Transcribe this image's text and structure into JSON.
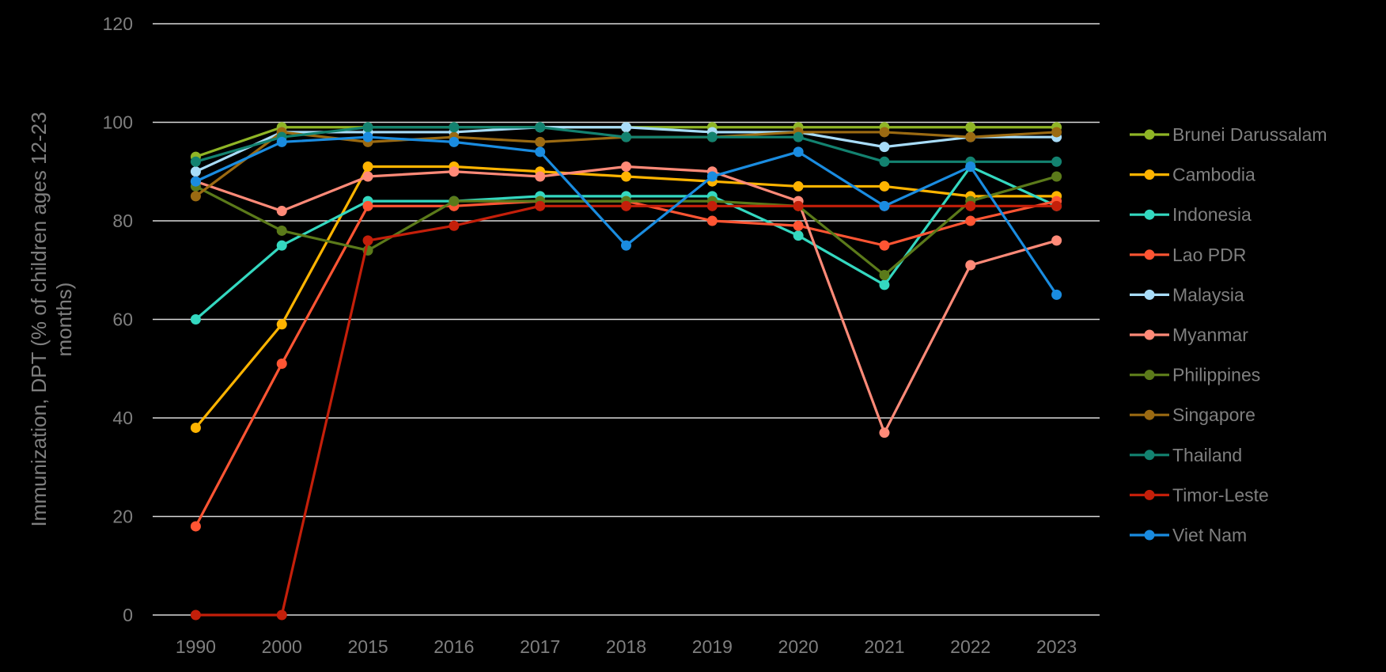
{
  "chart_data": {
    "type": "line",
    "title": "",
    "xlabel": "",
    "ylabel": "Immunization, DPT (% of children ages 12-23 months)",
    "ylim": [
      0,
      120
    ],
    "yticks": [
      0,
      20,
      40,
      60,
      80,
      100,
      120
    ],
    "grid": true,
    "legend_position": "right",
    "categories": [
      "1990",
      "2000",
      "2015",
      "2016",
      "2017",
      "2018",
      "2019",
      "2020",
      "2021",
      "2022",
      "2023"
    ],
    "series": [
      {
        "name": "Brunei Darussalam",
        "color": "#8fb526",
        "values": [
          93,
          99,
          99,
          99,
          99,
          99,
          99,
          99,
          99,
          99,
          99
        ]
      },
      {
        "name": "Cambodia",
        "color": "#ffb400",
        "values": [
          38,
          59,
          91,
          91,
          90,
          89,
          88,
          87,
          87,
          85,
          85
        ]
      },
      {
        "name": "Indonesia",
        "color": "#34d8c0",
        "values": [
          60,
          75,
          84,
          84,
          85,
          85,
          85,
          77,
          67,
          91,
          83
        ]
      },
      {
        "name": "Lao PDR",
        "color": "#ff5533",
        "values": [
          18,
          51,
          83,
          83,
          84,
          84,
          80,
          79,
          75,
          80,
          84
        ]
      },
      {
        "name": "Malaysia",
        "color": "#a8dcf8",
        "values": [
          90,
          98,
          98,
          98,
          99,
          99,
          98,
          98,
          95,
          97,
          97
        ]
      },
      {
        "name": "Myanmar",
        "color": "#ff8a78",
        "values": [
          88,
          82,
          89,
          90,
          89,
          91,
          90,
          84,
          37,
          71,
          76
        ]
      },
      {
        "name": "Philippines",
        "color": "#5b7a1a",
        "values": [
          87,
          78,
          74,
          84,
          84,
          84,
          84,
          83,
          69,
          84,
          89
        ]
      },
      {
        "name": "Singapore",
        "color": "#9b6a12",
        "values": [
          85,
          98,
          96,
          97,
          96,
          97,
          97,
          98,
          98,
          97,
          98
        ]
      },
      {
        "name": "Thailand",
        "color": "#138270",
        "values": [
          92,
          97,
          99,
          99,
          99,
          97,
          97,
          97,
          92,
          92,
          92
        ]
      },
      {
        "name": "Timor-Leste",
        "color": "#c41f0a",
        "values": [
          0,
          0,
          76,
          79,
          83,
          83,
          83,
          83,
          83,
          83,
          83
        ]
      },
      {
        "name": "Viet Nam",
        "color": "#1a8ce0",
        "values": [
          88,
          96,
          97,
          96,
          94,
          75,
          89,
          94,
          83,
          91,
          65
        ]
      }
    ]
  }
}
